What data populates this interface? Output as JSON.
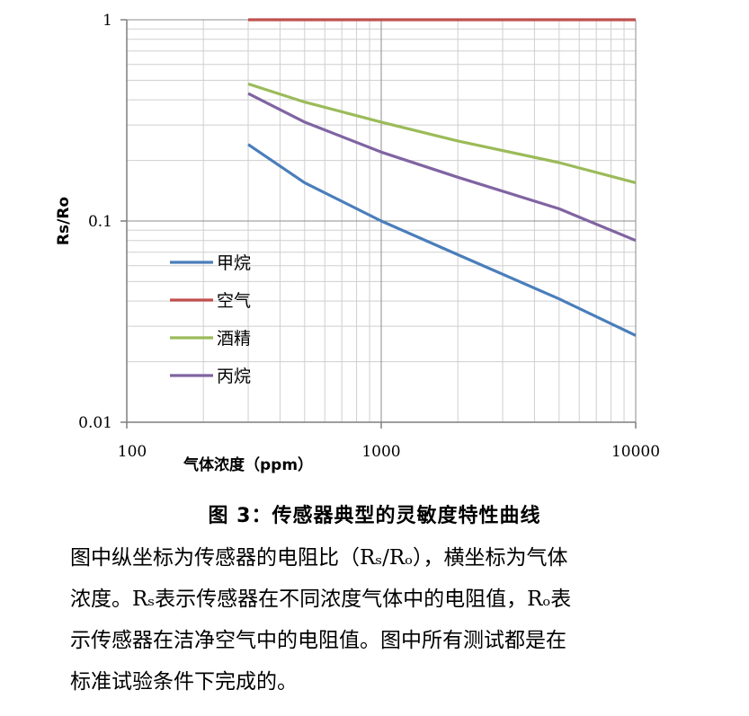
{
  "chart_data": {
    "type": "line",
    "x_scale": "log",
    "y_scale": "log",
    "xlim": [
      100,
      10000
    ],
    "ylim": [
      0.01,
      1
    ],
    "x_ticks": [
      "100",
      "1000",
      "10000"
    ],
    "y_ticks": [
      "0.01",
      "0.1",
      "1"
    ],
    "xlabel": "气体浓度（ppm）",
    "ylabel": "Rs/Ro",
    "grid": true,
    "legend_position": "left",
    "series": [
      {
        "name": "甲烷",
        "color": "#4a7ebb",
        "points": [
          [
            300,
            0.24
          ],
          [
            500,
            0.155
          ],
          [
            1000,
            0.1
          ],
          [
            2000,
            0.068
          ],
          [
            5000,
            0.041
          ],
          [
            10000,
            0.027
          ]
        ]
      },
      {
        "name": "空气",
        "color": "#c0504d",
        "points": [
          [
            300,
            1.0
          ],
          [
            10000,
            1.0
          ]
        ]
      },
      {
        "name": "酒精",
        "color": "#9bbb59",
        "points": [
          [
            300,
            0.48
          ],
          [
            500,
            0.39
          ],
          [
            1000,
            0.31
          ],
          [
            2000,
            0.25
          ],
          [
            5000,
            0.195
          ],
          [
            10000,
            0.155
          ]
        ]
      },
      {
        "name": "丙烷",
        "color": "#8064a2",
        "points": [
          [
            300,
            0.43
          ],
          [
            500,
            0.31
          ],
          [
            1000,
            0.22
          ],
          [
            2000,
            0.165
          ],
          [
            5000,
            0.115
          ],
          [
            10000,
            0.08
          ]
        ]
      }
    ]
  },
  "caption": "图 3：传感器典型的灵敏度特性曲线",
  "description": {
    "line1": "图中纵坐标为传感器的电阻比（Rₛ/Rₒ），横坐标为气体",
    "line2": "浓度。Rₛ表示传感器在不同浓度气体中的电阻值，Rₒ表",
    "line3": "示传感器在洁净空气中的电阻值。图中所有测试都是在",
    "line4": "标准试验条件下完成的。"
  }
}
